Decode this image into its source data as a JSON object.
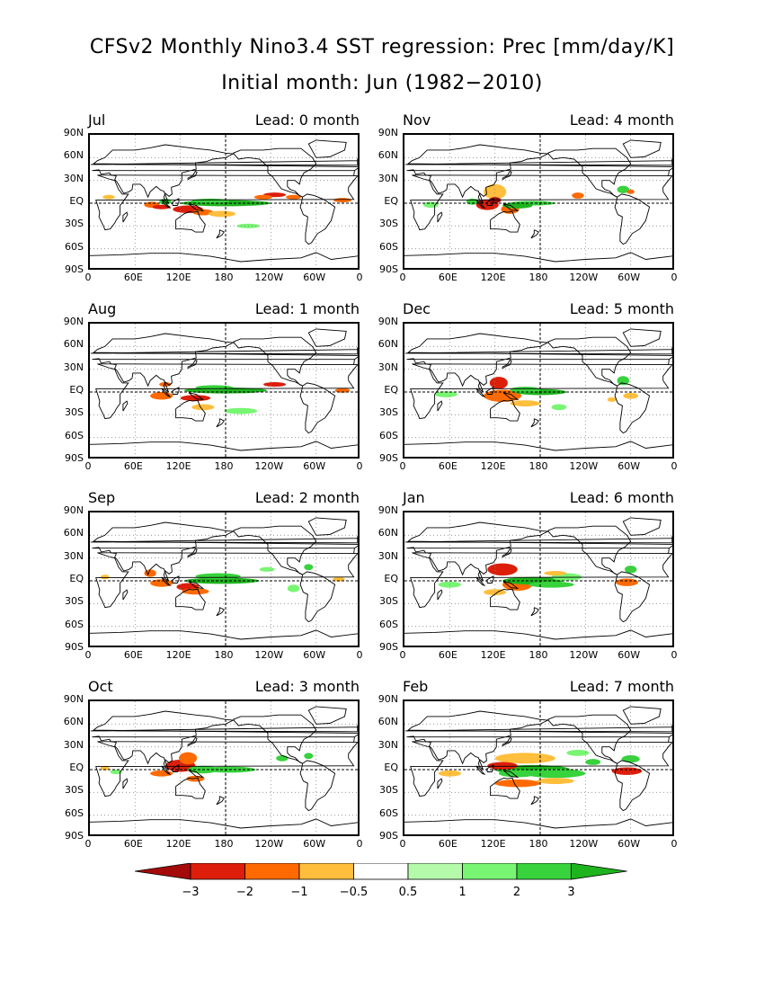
{
  "title": "CFSv2 Monthly Nino3.4 SST regression: Prec [mm/day/K]",
  "subtitle": "Initial month: Jun (1982−2010)",
  "lat_labels": [
    "90N",
    "60N",
    "30N",
    "EQ",
    "30S",
    "60S",
    "90S"
  ],
  "lon_labels": [
    "0",
    "60E",
    "120E",
    "180",
    "120W",
    "60W",
    "0"
  ],
  "colorbar": {
    "labels": [
      "−3",
      "−2",
      "−1",
      "−0.5",
      "0.5",
      "1",
      "2",
      "3"
    ],
    "colors": [
      "#a50a0a",
      "#dc1e0a",
      "#ff6a00",
      "#ffbe3c",
      "#ffffff",
      "#b4faaa",
      "#78f573",
      "#37d23c",
      "#1eb41e"
    ]
  },
  "chart_data": {
    "type": "heatmap",
    "variable": "Prec",
    "units": "mm/day/K",
    "panels": [
      {
        "month": "Jul",
        "lead": "Lead: 0 month"
      },
      {
        "month": "Nov",
        "lead": "Lead: 4 month"
      },
      {
        "month": "Aug",
        "lead": "Lead: 1 month"
      },
      {
        "month": "Dec",
        "lead": "Lead: 5 month"
      },
      {
        "month": "Sep",
        "lead": "Lead: 2 month"
      },
      {
        "month": "Jan",
        "lead": "Lead: 6 month"
      },
      {
        "month": "Oct",
        "lead": "Lead: 3 month"
      },
      {
        "month": "Feb",
        "lead": "Lead: 7 month"
      }
    ]
  }
}
